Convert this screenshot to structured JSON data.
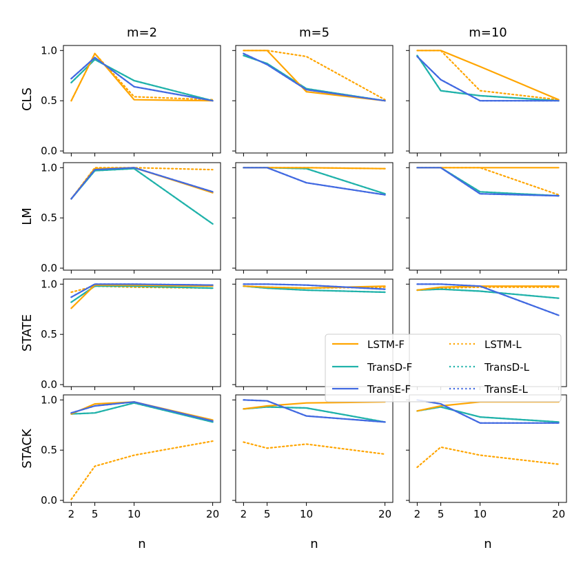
{
  "colors": {
    "LSTM": "#FFA500",
    "TransD": "#20B2AA",
    "TransE": "#4169E1"
  },
  "figure": {
    "column_titles": [
      "m=2",
      "m=5",
      "m=10"
    ],
    "row_labels": [
      "CLS",
      "LM",
      "STATE",
      "STACK"
    ],
    "xlabel": "n",
    "x_ticks": [
      "2",
      "5",
      "10",
      "20"
    ],
    "y_ticks": [
      "0.0",
      "0.5",
      "1.0"
    ]
  },
  "legend": {
    "entries": [
      {
        "label": "LSTM-F",
        "model": "LSTM",
        "style": "solid"
      },
      {
        "label": "LSTM-L",
        "model": "LSTM",
        "style": "dotted"
      },
      {
        "label": "TransD-F",
        "model": "TransD",
        "style": "solid"
      },
      {
        "label": "TransD-L",
        "model": "TransD",
        "style": "dotted"
      },
      {
        "label": "TransE-F",
        "model": "TransE",
        "style": "solid"
      },
      {
        "label": "TransE-L",
        "model": "TransE",
        "style": "dotted"
      }
    ]
  },
  "chart_data": {
    "type": "line",
    "x": [
      2,
      5,
      10,
      20
    ],
    "xlabel": "n",
    "ylim": [
      -0.02,
      1.05
    ],
    "xlim": [
      1,
      21
    ],
    "legend_position": "center-right",
    "panels": [
      {
        "row": "CLS",
        "col": "m=2",
        "series": [
          {
            "name": "LSTM-F",
            "values": [
              0.5,
              0.97,
              0.51,
              0.5
            ]
          },
          {
            "name": "LSTM-L",
            "values": [
              0.5,
              0.97,
              0.54,
              0.51
            ]
          },
          {
            "name": "TransD-F",
            "values": [
              0.68,
              0.91,
              0.7,
              0.5
            ]
          },
          {
            "name": "TransD-L",
            "values": [
              0.68,
              0.91,
              0.7,
              0.5
            ]
          },
          {
            "name": "TransE-F",
            "values": [
              0.72,
              0.93,
              0.64,
              0.5
            ]
          },
          {
            "name": "TransE-L",
            "values": [
              0.72,
              0.93,
              0.64,
              0.5
            ]
          }
        ]
      },
      {
        "row": "CLS",
        "col": "m=5",
        "series": [
          {
            "name": "LSTM-F",
            "values": [
              1.0,
              1.0,
              0.59,
              0.5
            ]
          },
          {
            "name": "LSTM-L",
            "values": [
              1.0,
              1.0,
              0.94,
              0.51
            ]
          },
          {
            "name": "TransD-F",
            "values": [
              0.95,
              0.87,
              0.62,
              0.5
            ]
          },
          {
            "name": "TransD-L",
            "values": [
              0.95,
              0.87,
              0.62,
              0.5
            ]
          },
          {
            "name": "TransE-F",
            "values": [
              0.97,
              0.86,
              0.61,
              0.5
            ]
          },
          {
            "name": "TransE-L",
            "values": [
              0.97,
              0.86,
              0.61,
              0.5
            ]
          }
        ]
      },
      {
        "row": "CLS",
        "col": "m=10",
        "series": [
          {
            "name": "LSTM-F",
            "values": [
              1.0,
              1.0,
              0.84,
              0.51
            ]
          },
          {
            "name": "LSTM-L",
            "values": [
              1.0,
              1.0,
              0.6,
              0.51
            ]
          },
          {
            "name": "TransD-F",
            "values": [
              0.95,
              0.6,
              0.55,
              0.5
            ]
          },
          {
            "name": "TransD-L",
            "values": [
              0.95,
              0.6,
              0.55,
              0.5
            ]
          },
          {
            "name": "TransE-F",
            "values": [
              0.94,
              0.71,
              0.5,
              0.5
            ]
          },
          {
            "name": "TransE-L",
            "values": [
              0.94,
              0.71,
              0.5,
              0.5
            ]
          }
        ]
      },
      {
        "row": "LM",
        "col": "m=2",
        "series": [
          {
            "name": "LSTM-F",
            "values": [
              0.69,
              0.99,
              1.0,
              0.75
            ]
          },
          {
            "name": "LSTM-L",
            "values": [
              0.69,
              1.0,
              1.0,
              0.98
            ]
          },
          {
            "name": "TransD-F",
            "values": [
              0.69,
              0.97,
              0.99,
              0.44
            ]
          },
          {
            "name": "TransD-L",
            "values": [
              0.69,
              0.97,
              0.99,
              0.44
            ]
          },
          {
            "name": "TransE-F",
            "values": [
              0.69,
              0.98,
              1.0,
              0.76
            ]
          },
          {
            "name": "TransE-L",
            "values": [
              0.69,
              0.98,
              1.0,
              0.76
            ]
          }
        ]
      },
      {
        "row": "LM",
        "col": "m=5",
        "series": [
          {
            "name": "LSTM-F",
            "values": [
              1.0,
              1.0,
              1.0,
              0.99
            ]
          },
          {
            "name": "LSTM-L",
            "values": [
              1.0,
              1.0,
              1.0,
              0.99
            ]
          },
          {
            "name": "TransD-F",
            "values": [
              1.0,
              1.0,
              0.99,
              0.74
            ]
          },
          {
            "name": "TransD-L",
            "values": [
              1.0,
              1.0,
              0.99,
              0.74
            ]
          },
          {
            "name": "TransE-F",
            "values": [
              1.0,
              1.0,
              0.85,
              0.73
            ]
          },
          {
            "name": "TransE-L",
            "values": [
              1.0,
              1.0,
              0.85,
              0.73
            ]
          }
        ]
      },
      {
        "row": "LM",
        "col": "m=10",
        "series": [
          {
            "name": "LSTM-F",
            "values": [
              1.0,
              1.0,
              1.0,
              1.0
            ]
          },
          {
            "name": "LSTM-L",
            "values": [
              1.0,
              1.0,
              1.0,
              0.73
            ]
          },
          {
            "name": "TransD-F",
            "values": [
              1.0,
              1.0,
              0.76,
              0.72
            ]
          },
          {
            "name": "TransD-L",
            "values": [
              1.0,
              1.0,
              0.76,
              0.72
            ]
          },
          {
            "name": "TransE-F",
            "values": [
              1.0,
              1.0,
              0.74,
              0.72
            ]
          },
          {
            "name": "TransE-L",
            "values": [
              1.0,
              1.0,
              0.74,
              0.72
            ]
          }
        ]
      },
      {
        "row": "STATE",
        "col": "m=2",
        "series": [
          {
            "name": "LSTM-F",
            "values": [
              0.76,
              0.99,
              0.99,
              0.98
            ]
          },
          {
            "name": "LSTM-L",
            "values": [
              0.92,
              0.98,
              0.97,
              0.96
            ]
          },
          {
            "name": "TransD-F",
            "values": [
              0.82,
              0.98,
              0.98,
              0.96
            ]
          },
          {
            "name": "TransD-L",
            "values": [
              0.82,
              0.98,
              0.98,
              0.96
            ]
          },
          {
            "name": "TransE-F",
            "values": [
              0.87,
              1.0,
              1.0,
              0.99
            ]
          },
          {
            "name": "TransE-L",
            "values": [
              0.87,
              1.0,
              1.0,
              0.99
            ]
          }
        ]
      },
      {
        "row": "STATE",
        "col": "m=5",
        "series": [
          {
            "name": "LSTM-F",
            "values": [
              0.98,
              0.97,
              0.96,
              0.98
            ]
          },
          {
            "name": "LSTM-L",
            "values": [
              0.98,
              0.97,
              0.96,
              0.97
            ]
          },
          {
            "name": "TransD-F",
            "values": [
              0.98,
              0.96,
              0.94,
              0.92
            ]
          },
          {
            "name": "TransD-L",
            "values": [
              0.98,
              0.96,
              0.94,
              0.92
            ]
          },
          {
            "name": "TransE-F",
            "values": [
              1.0,
              1.0,
              0.99,
              0.95
            ]
          },
          {
            "name": "TransE-L",
            "values": [
              1.0,
              1.0,
              0.99,
              0.95
            ]
          }
        ]
      },
      {
        "row": "STATE",
        "col": "m=10",
        "series": [
          {
            "name": "LSTM-F",
            "values": [
              0.94,
              0.97,
              0.98,
              0.98
            ]
          },
          {
            "name": "LSTM-L",
            "values": [
              0.94,
              0.96,
              0.97,
              0.97
            ]
          },
          {
            "name": "TransD-F",
            "values": [
              0.94,
              0.95,
              0.93,
              0.86
            ]
          },
          {
            "name": "TransD-L",
            "values": [
              0.94,
              0.95,
              0.93,
              0.86
            ]
          },
          {
            "name": "TransE-F",
            "values": [
              1.0,
              1.0,
              0.98,
              0.69
            ]
          },
          {
            "name": "TransE-L",
            "values": [
              1.0,
              1.0,
              0.98,
              0.69
            ]
          }
        ]
      },
      {
        "row": "STACK",
        "col": "m=2",
        "series": [
          {
            "name": "LSTM-F",
            "values": [
              0.86,
              0.96,
              0.98,
              0.8
            ]
          },
          {
            "name": "LSTM-L",
            "values": [
              0.01,
              0.34,
              0.45,
              0.59
            ]
          },
          {
            "name": "TransD-F",
            "values": [
              0.86,
              0.87,
              0.97,
              0.78
            ]
          },
          {
            "name": "TransD-L",
            "values": [
              0.86,
              0.87,
              0.97,
              0.78
            ]
          },
          {
            "name": "TransE-F",
            "values": [
              0.87,
              0.94,
              0.98,
              0.79
            ]
          },
          {
            "name": "TransE-L",
            "values": [
              0.87,
              0.94,
              0.98,
              0.79
            ]
          }
        ]
      },
      {
        "row": "STACK",
        "col": "m=5",
        "series": [
          {
            "name": "LSTM-F",
            "values": [
              0.91,
              0.94,
              0.97,
              0.98
            ]
          },
          {
            "name": "LSTM-L",
            "values": [
              0.58,
              0.52,
              0.56,
              0.46
            ]
          },
          {
            "name": "TransD-F",
            "values": [
              0.91,
              0.93,
              0.92,
              0.78
            ]
          },
          {
            "name": "TransD-L",
            "values": [
              0.91,
              0.93,
              0.92,
              0.78
            ]
          },
          {
            "name": "TransE-F",
            "values": [
              1.0,
              0.99,
              0.84,
              0.78
            ]
          },
          {
            "name": "TransE-L",
            "values": [
              1.0,
              0.99,
              0.84,
              0.78
            ]
          }
        ]
      },
      {
        "row": "STACK",
        "col": "m=10",
        "series": [
          {
            "name": "LSTM-F",
            "values": [
              0.89,
              0.94,
              0.98,
              0.98
            ]
          },
          {
            "name": "LSTM-L",
            "values": [
              0.33,
              0.53,
              0.45,
              0.36
            ]
          },
          {
            "name": "TransD-F",
            "values": [
              0.89,
              0.93,
              0.83,
              0.78
            ]
          },
          {
            "name": "TransD-L",
            "values": [
              0.89,
              0.93,
              0.83,
              0.78
            ]
          },
          {
            "name": "TransE-F",
            "values": [
              1.0,
              0.96,
              0.77,
              0.77
            ]
          },
          {
            "name": "TransE-L",
            "values": [
              1.0,
              0.96,
              0.77,
              0.77
            ]
          }
        ]
      }
    ]
  }
}
